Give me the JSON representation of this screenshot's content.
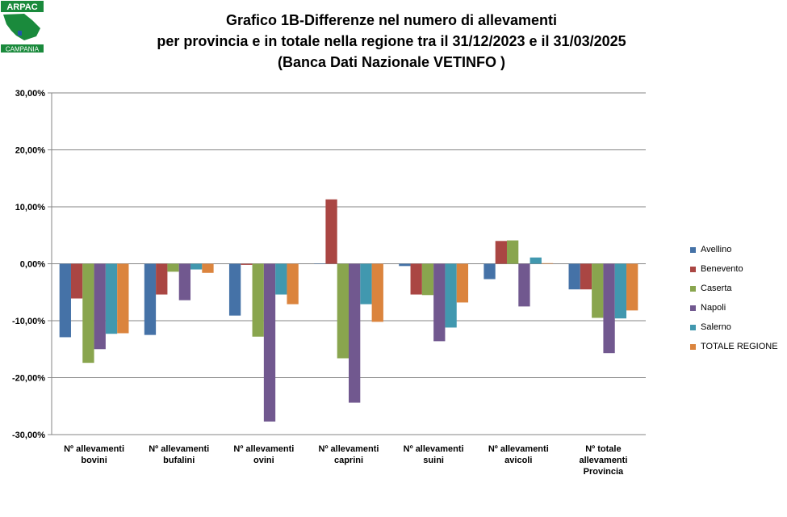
{
  "logo": {
    "top_text": "ARPAC",
    "bottom_text": "CAMPANIA"
  },
  "title": {
    "line1": "Grafico 1B-Differenze nel numero di allevamenti",
    "line2": "per provincia e in totale nella regione tra il 31/12/2023 e il 31/03/2025",
    "line3": "(Banca Dati Nazionale VETINFO )"
  },
  "chart_data": {
    "type": "bar",
    "title": "Grafico 1B-Differenze nel numero di allevamenti per provincia e in totale nella regione tra il 31/12/2023 e il 31/03/2025 (Banca Dati Nazionale VETINFO )",
    "categories": [
      [
        "Nº allevamenti",
        "bovini"
      ],
      [
        "Nº allevamenti",
        "bufalini"
      ],
      [
        "Nº allevamenti",
        "ovini"
      ],
      [
        "Nº allevamenti",
        "caprini"
      ],
      [
        "Nº allevamenti",
        "suini"
      ],
      [
        "Nº allevamenti",
        "avicoli"
      ],
      [
        "Nº totale",
        "allevamenti",
        "Provincia"
      ]
    ],
    "ylim": [
      -30,
      30
    ],
    "yticks": [
      "-30,00%",
      "-20,00%",
      "-10,00%",
      "0,00%",
      "10,00%",
      "20,00%",
      "30,00%"
    ],
    "ytick_values": [
      -30,
      -20,
      -10,
      0,
      10,
      20,
      30
    ],
    "grid": true,
    "legend_position": "right",
    "series": [
      {
        "name": "Avellino",
        "color": "#4572A7",
        "values": [
          -12.9,
          -12.5,
          -9.1,
          0,
          -0.4,
          -2.7,
          -4.5
        ]
      },
      {
        "name": "Benevento",
        "color": "#AA4643",
        "values": [
          -6.1,
          -5.4,
          -0.2,
          11.3,
          -5.4,
          4.0,
          -4.5
        ]
      },
      {
        "name": "Caserta",
        "color": "#89A54E",
        "values": [
          -17.4,
          -1.4,
          -12.8,
          -16.6,
          -5.5,
          4.1,
          -9.5
        ]
      },
      {
        "name": "Napoli",
        "color": "#71588F",
        "values": [
          -15.0,
          -6.4,
          -27.7,
          -24.4,
          -13.6,
          -7.5,
          -15.7
        ]
      },
      {
        "name": "Salerno",
        "color": "#4198AF",
        "values": [
          -12.3,
          -1.0,
          -5.4,
          -7.1,
          -11.2,
          1.1,
          -9.6
        ]
      },
      {
        "name": "TOTALE REGIONE",
        "color": "#DB843D",
        "values": [
          -12.2,
          -1.6,
          -7.1,
          -10.2,
          -6.8,
          0.1,
          -8.2
        ]
      }
    ]
  }
}
